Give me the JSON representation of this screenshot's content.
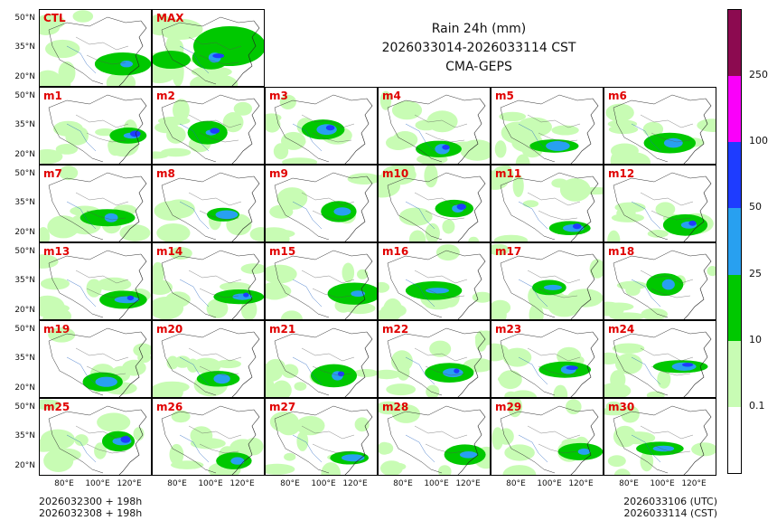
{
  "title": {
    "line1": "Rain 24h (mm)",
    "line2": "2026033014-2026033114 CST",
    "line3": "CMA-GEPS"
  },
  "footer": {
    "left_line1": "2026032300 + 198h",
    "left_line2": "2026032308 + 198h",
    "right_line1": "2026033106 (UTC)",
    "right_line2": "2026033114 (CST)"
  },
  "axis": {
    "lat_labels": [
      "50°N",
      "35°N",
      "20°N"
    ],
    "lon_labels": [
      "80°E",
      "100°E",
      "120°E"
    ]
  },
  "panels": [
    "CTL",
    "MAX",
    "m1",
    "m2",
    "m3",
    "m4",
    "m5",
    "m6",
    "m7",
    "m8",
    "m9",
    "m10",
    "m11",
    "m12",
    "m13",
    "m14",
    "m15",
    "m16",
    "m17",
    "m18",
    "m19",
    "m20",
    "m21",
    "m22",
    "m23",
    "m24",
    "m25",
    "m26",
    "m27",
    "m28",
    "m29",
    "m30"
  ],
  "colorbar": {
    "levels": [
      "0.1",
      "10",
      "25",
      "50",
      "100",
      "250"
    ],
    "colors": [
      "#ffffff",
      "#c8fcb4",
      "#00c800",
      "#28a0f0",
      "#1e3cff",
      "#fa00fa",
      "#8c0a50"
    ]
  },
  "colors": {
    "light_rain": "#c8fcb4",
    "moderate_rain": "#00c800",
    "heavy_rain": "#28a0f0",
    "very_heavy_rain": "#1e3cff",
    "label_red": "#e00000"
  }
}
